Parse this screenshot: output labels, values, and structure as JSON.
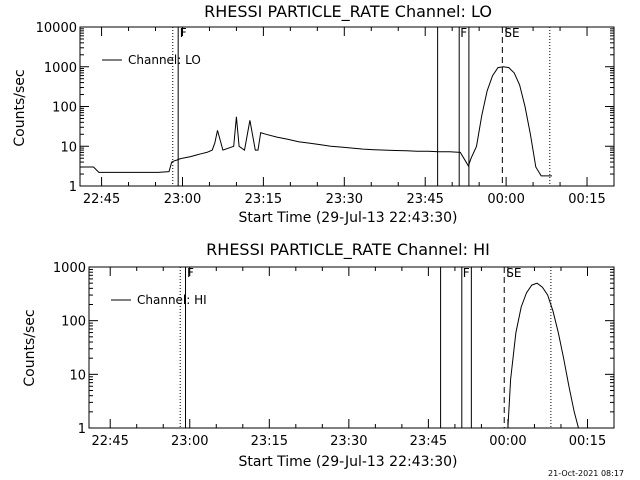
{
  "footer": {
    "timestamp": "21-Oct-2021 08:17"
  },
  "shared": {
    "xlabel": "Start Time (29-Jul-13 22:43:30)",
    "ylabel": "Counts/sec",
    "x_tick_labels": [
      "22:45",
      "23:00",
      "23:15",
      "23:30",
      "23:45",
      "00:00",
      "00:15"
    ],
    "flag_labels": {
      "F_left": "F",
      "F_right": "F",
      "SE": "SE"
    }
  },
  "chart_data": [
    {
      "type": "line",
      "title": "RHESSI PARTICLE_RATE Channel: LO",
      "xlabel": "Start Time (29-Jul-13 22:43:30)",
      "ylabel": "Counts/sec",
      "yscale": "log",
      "ylim": [
        1,
        10000
      ],
      "xlim_minutes": [
        -2.5,
        96.5
      ],
      "x_ticks": [
        "22:45",
        "23:00",
        "23:15",
        "23:30",
        "23:45",
        "00:00",
        "00:15"
      ],
      "y_ticks": [
        "1",
        "10",
        "100",
        "1000",
        "10000"
      ],
      "legend": {
        "position": "top-left",
        "entries": [
          "Channel: LO"
        ]
      },
      "markers": {
        "dotted_minutes": [
          14.7,
          84.6
        ],
        "solid_minutes": [
          15.7,
          63.8,
          67.8,
          69.6
        ],
        "dashed_minutes": [
          75.8
        ],
        "labels": [
          {
            "text": "F",
            "minute": 15.8
          },
          {
            "text": "F",
            "minute": 67.8
          },
          {
            "text": "SE",
            "minute": 76.0
          }
        ]
      },
      "series": [
        {
          "name": "Channel: LO",
          "x_minutes": [
            -2.5,
            0,
            1,
            2,
            4,
            6,
            8,
            10,
            12,
            14,
            14.5,
            15,
            15.5,
            16,
            16.5,
            18,
            19,
            20,
            21,
            22,
            22.5,
            23,
            24,
            26,
            26.5,
            27,
            28,
            29,
            30,
            30.5,
            31,
            32,
            34,
            36,
            38,
            40,
            42,
            44,
            46,
            48,
            50,
            52,
            54,
            56,
            58,
            60,
            62,
            64,
            66,
            68,
            69.5,
            70,
            71,
            72,
            73,
            74,
            75,
            76,
            77,
            78,
            79,
            80,
            81,
            82,
            83,
            84,
            85
          ],
          "y": [
            3,
            3,
            2.2,
            2.2,
            2.2,
            2.2,
            2.2,
            2.2,
            2.2,
            2.3,
            4,
            4.3,
            4.5,
            4.8,
            5,
            5.5,
            6,
            6.5,
            7,
            8,
            12,
            25,
            8,
            10,
            55,
            10,
            8,
            45,
            8,
            8,
            22,
            20,
            17,
            15,
            13,
            12,
            11,
            10,
            9.5,
            9,
            8.5,
            8.2,
            8,
            7.8,
            7.7,
            7.5,
            7.5,
            7.3,
            7.3,
            7,
            3.2,
            5,
            10,
            60,
            250,
            600,
            950,
            1000,
            950,
            700,
            350,
            100,
            20,
            3,
            1.8,
            1.8,
            1.8
          ]
        }
      ]
    },
    {
      "type": "line",
      "title": "RHESSI PARTICLE_RATE Channel: HI",
      "xlabel": "Start Time (29-Jul-13 22:43:30)",
      "ylabel": "Counts/sec",
      "yscale": "log",
      "ylim": [
        1,
        1000
      ],
      "xlim_minutes": [
        -2.5,
        96.5
      ],
      "x_ticks": [
        "22:45",
        "23:00",
        "23:15",
        "23:30",
        "23:45",
        "00:00",
        "00:15"
      ],
      "y_ticks": [
        "1",
        "10",
        "100",
        "1000"
      ],
      "legend": {
        "position": "top-left",
        "entries": [
          "Channel: HI"
        ]
      },
      "markers": {
        "dotted_minutes": [
          14.7,
          84.6
        ],
        "solid_minutes": [
          15.7,
          63.8,
          67.8,
          69.6
        ],
        "dashed_minutes": [
          75.8
        ],
        "labels": [
          {
            "text": "F",
            "minute": 15.8
          },
          {
            "text": "F",
            "minute": 67.8
          },
          {
            "text": "SE",
            "minute": 76.0
          }
        ]
      },
      "series": [
        {
          "name": "Channel: HI",
          "x_minutes": [
            76.5,
            77,
            78,
            79,
            80,
            81,
            82,
            83,
            84,
            85,
            86,
            87,
            88,
            89,
            89.8
          ],
          "y": [
            1,
            8,
            60,
            180,
            330,
            460,
            500,
            420,
            300,
            150,
            60,
            20,
            6,
            2,
            1
          ]
        }
      ]
    }
  ]
}
